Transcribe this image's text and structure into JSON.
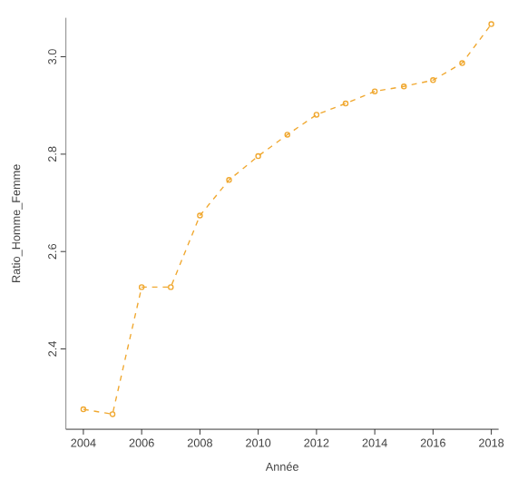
{
  "chart_data": {
    "type": "line",
    "xlabel": "Année",
    "ylabel": "Ratio_Homme_Femme",
    "x": [
      2004,
      2005,
      2006,
      2007,
      2008,
      2009,
      2010,
      2011,
      2012,
      2013,
      2014,
      2015,
      2016,
      2017,
      2018
    ],
    "series": [
      {
        "color": "#f0a830",
        "values": [
          2.276,
          2.266,
          2.527,
          2.527,
          2.674,
          2.747,
          2.796,
          2.84,
          2.881,
          2.904,
          2.929,
          2.939,
          2.952,
          2.987,
          3.067
        ]
      }
    ],
    "xlim": [
      2003.4,
      2018.25
    ],
    "ylim": [
      2.235,
      3.08
    ],
    "xticks": [
      2004,
      2006,
      2008,
      2010,
      2012,
      2014,
      2016,
      2018
    ],
    "yticks": [
      {
        "value": 2.4,
        "label": "2.4"
      },
      {
        "value": 2.6,
        "label": "2.6"
      },
      {
        "value": 2.8,
        "label": "2.8"
      },
      {
        "value": 3.0,
        "label": "3.0"
      }
    ],
    "grid": false,
    "marker": "circle",
    "line_style": "dashed"
  }
}
